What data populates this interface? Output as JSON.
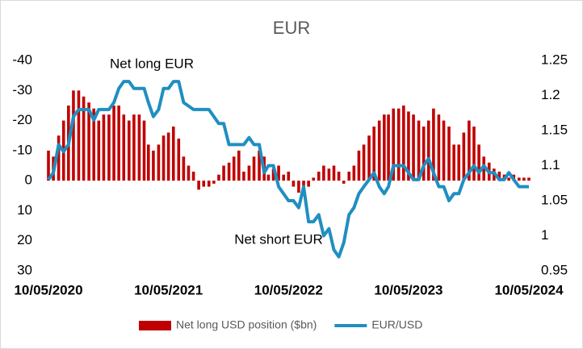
{
  "chart_data": {
    "type": "bar-line",
    "title": "EUR",
    "annotations": [
      "Net long EUR",
      "Net short EUR"
    ],
    "x": [
      "2020-05-10",
      "2020-05-25",
      "2020-06-10",
      "2020-06-25",
      "2020-07-10",
      "2020-07-25",
      "2020-08-10",
      "2020-08-25",
      "2020-09-10",
      "2020-09-25",
      "2020-10-10",
      "2020-10-25",
      "2020-11-10",
      "2020-11-25",
      "2020-12-10",
      "2020-12-25",
      "2021-01-10",
      "2021-01-25",
      "2021-02-10",
      "2021-02-25",
      "2021-03-10",
      "2021-03-25",
      "2021-04-10",
      "2021-04-25",
      "2021-05-10",
      "2021-05-25",
      "2021-06-10",
      "2021-06-25",
      "2021-07-10",
      "2021-07-25",
      "2021-08-10",
      "2021-08-25",
      "2021-09-10",
      "2021-09-25",
      "2021-10-10",
      "2021-10-25",
      "2021-11-10",
      "2021-11-25",
      "2021-12-10",
      "2021-12-25",
      "2022-01-10",
      "2022-01-25",
      "2022-02-10",
      "2022-02-25",
      "2022-03-10",
      "2022-03-25",
      "2022-04-10",
      "2022-04-25",
      "2022-05-10",
      "2022-05-25",
      "2022-06-10",
      "2022-06-25",
      "2022-07-10",
      "2022-07-25",
      "2022-08-10",
      "2022-08-25",
      "2022-09-10",
      "2022-09-25",
      "2022-10-10",
      "2022-10-25",
      "2022-11-10",
      "2022-11-25",
      "2022-12-10",
      "2022-12-25",
      "2023-01-10",
      "2023-01-25",
      "2023-02-10",
      "2023-02-25",
      "2023-03-10",
      "2023-03-25",
      "2023-04-10",
      "2023-04-25",
      "2023-05-10",
      "2023-05-25",
      "2023-06-10",
      "2023-06-25",
      "2023-07-10",
      "2023-07-25",
      "2023-08-10",
      "2023-08-25",
      "2023-09-10",
      "2023-09-25",
      "2023-10-10",
      "2023-10-25",
      "2023-11-10",
      "2023-11-25",
      "2023-12-10",
      "2023-12-25",
      "2024-01-10",
      "2024-01-25",
      "2024-02-10",
      "2024-02-25",
      "2024-03-10",
      "2024-03-25",
      "2024-04-10",
      "2024-04-25",
      "2024-05-10"
    ],
    "xlim": [
      "2020-05-10",
      "2024-05-10"
    ],
    "xticks": [
      {
        "value": "2020-05-10",
        "label": "10/05/2020"
      },
      {
        "value": "2021-05-10",
        "label": "10/05/2021"
      },
      {
        "value": "2022-05-10",
        "label": "10/05/2022"
      },
      {
        "value": "2023-05-10",
        "label": "10/05/2023"
      },
      {
        "value": "2024-05-10",
        "label": "10/05/2024"
      }
    ],
    "ylim": [
      -40,
      30
    ],
    "y_reversed": true,
    "yticks": [
      -40,
      -30,
      -20,
      -10,
      0,
      10,
      20,
      30
    ],
    "y2lim": [
      0.95,
      1.25
    ],
    "y2ticks": [
      0.95,
      1,
      1.05,
      1.1,
      1.15,
      1.2,
      1.25
    ],
    "legend": "bottom",
    "series": [
      {
        "name": "Net long USD position ($bn)",
        "type": "bar",
        "color": "#c00000",
        "values": [
          -10,
          -8,
          -15,
          -20,
          -25,
          -30,
          -30,
          -28,
          -26,
          -24,
          -20,
          -22,
          -22,
          -25,
          -25,
          -22,
          -20,
          -22,
          -22,
          -20,
          -12,
          -10,
          -12,
          -15,
          -16,
          -18,
          -14,
          -8,
          -5,
          -3,
          3,
          2,
          2,
          1,
          -2,
          -5,
          -6,
          -8,
          -10,
          -3,
          -5,
          -8,
          -10,
          -8,
          -2,
          -4,
          -5,
          -2,
          -3,
          2,
          4,
          5,
          2,
          -1,
          -3,
          -5,
          -4,
          -5,
          -3,
          1,
          -3,
          -5,
          -10,
          -12,
          -15,
          -18,
          -20,
          -22,
          -22,
          -24,
          -24,
          -25,
          -23,
          -22,
          -20,
          -18,
          -20,
          -24,
          -22,
          -20,
          -18,
          -12,
          -12,
          -16,
          -20,
          -18,
          -12,
          -8,
          -6,
          -4,
          -3,
          -2,
          -1,
          -2,
          -1,
          -1,
          -1
        ]
      },
      {
        "name": "EUR/USD",
        "type": "line",
        "axis": "y2",
        "color": "#1f8fc0",
        "values": [
          1.08,
          1.09,
          1.13,
          1.12,
          1.13,
          1.17,
          1.18,
          1.18,
          1.18,
          1.165,
          1.18,
          1.18,
          1.18,
          1.19,
          1.21,
          1.22,
          1.22,
          1.21,
          1.21,
          1.21,
          1.19,
          1.17,
          1.18,
          1.21,
          1.21,
          1.22,
          1.22,
          1.19,
          1.185,
          1.18,
          1.18,
          1.18,
          1.18,
          1.17,
          1.16,
          1.16,
          1.13,
          1.13,
          1.13,
          1.13,
          1.14,
          1.13,
          1.13,
          1.09,
          1.1,
          1.1,
          1.07,
          1.06,
          1.05,
          1.05,
          1.04,
          1.07,
          1.02,
          1.02,
          1.03,
          1.0,
          1.01,
          0.98,
          0.97,
          0.99,
          1.03,
          1.04,
          1.06,
          1.07,
          1.08,
          1.09,
          1.07,
          1.06,
          1.07,
          1.1,
          1.1,
          1.1,
          1.09,
          1.08,
          1.08,
          1.1,
          1.11,
          1.09,
          1.07,
          1.07,
          1.05,
          1.06,
          1.06,
          1.08,
          1.09,
          1.1,
          1.09,
          1.1,
          1.09,
          1.09,
          1.08,
          1.08,
          1.09,
          1.08,
          1.07,
          1.07,
          1.07
        ]
      }
    ]
  }
}
